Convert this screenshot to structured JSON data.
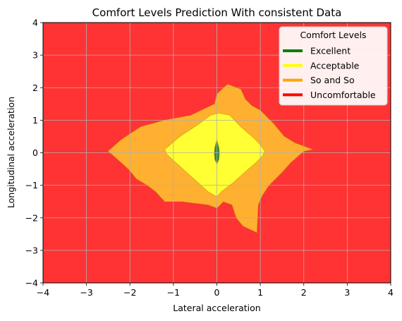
{
  "chart_data": {
    "type": "contour",
    "title": "Comfort Levels Prediction With consistent Data",
    "xlabel": "Lateral acceleration",
    "ylabel": "Longitudinal acceleration",
    "xlim": [
      -4,
      4
    ],
    "ylim": [
      -4,
      4
    ],
    "xticks": [
      -4,
      -3,
      -2,
      -1,
      0,
      1,
      2,
      3,
      4
    ],
    "yticks": [
      -4,
      -3,
      -2,
      -1,
      0,
      1,
      2,
      3,
      4
    ],
    "grid": true,
    "legend": {
      "title": "Comfort Levels",
      "placement": "top-right",
      "entries": [
        {
          "label": "Excellent",
          "color": "#008000"
        },
        {
          "label": "Acceptable",
          "color": "#ffff00"
        },
        {
          "label": "So and So",
          "color": "#ffa500"
        },
        {
          "label": "Uncomfortable",
          "color": "#ff0000"
        }
      ]
    },
    "regions": [
      {
        "level": "Uncomfortable",
        "fill": "#ff3333",
        "polygon": [
          [
            -4,
            -4
          ],
          [
            4,
            -4
          ],
          [
            4,
            4
          ],
          [
            -4,
            4
          ]
        ]
      },
      {
        "level": "So and So",
        "fill": "#ffb030",
        "polygon": [
          [
            -2.5,
            0.05
          ],
          [
            -2.2,
            0.4
          ],
          [
            -1.75,
            0.8
          ],
          [
            -1.2,
            1.0
          ],
          [
            -0.6,
            1.15
          ],
          [
            -0.05,
            1.5
          ],
          [
            0.0,
            1.8
          ],
          [
            0.2,
            2.05
          ],
          [
            0.25,
            2.1
          ],
          [
            0.55,
            1.95
          ],
          [
            0.65,
            1.65
          ],
          [
            0.8,
            1.45
          ],
          [
            1.0,
            1.3
          ],
          [
            1.3,
            0.9
          ],
          [
            1.55,
            0.5
          ],
          [
            1.8,
            0.3
          ],
          [
            2.0,
            0.2
          ],
          [
            2.2,
            0.1
          ],
          [
            2.0,
            0.05
          ],
          [
            1.7,
            -0.3
          ],
          [
            1.5,
            -0.6
          ],
          [
            1.2,
            -1.0
          ],
          [
            1.05,
            -1.3
          ],
          [
            0.95,
            -1.6
          ],
          [
            0.92,
            -2.45
          ],
          [
            0.6,
            -2.25
          ],
          [
            0.45,
            -2.0
          ],
          [
            0.35,
            -1.6
          ],
          [
            0.15,
            -1.5
          ],
          [
            0.0,
            -1.7
          ],
          [
            -0.2,
            -1.6
          ],
          [
            -0.5,
            -1.55
          ],
          [
            -0.8,
            -1.5
          ],
          [
            -1.2,
            -1.5
          ],
          [
            -1.4,
            -1.2
          ],
          [
            -1.6,
            -1.0
          ],
          [
            -1.85,
            -0.8
          ],
          [
            -2.0,
            -0.55
          ],
          [
            -2.2,
            -0.3
          ]
        ]
      },
      {
        "level": "Acceptable",
        "fill": "#ffff33",
        "polygon": [
          [
            -1.2,
            0.1
          ],
          [
            -0.85,
            0.5
          ],
          [
            -0.45,
            0.85
          ],
          [
            -0.15,
            1.15
          ],
          [
            0.05,
            1.22
          ],
          [
            0.3,
            1.15
          ],
          [
            0.55,
            0.8
          ],
          [
            0.85,
            0.45
          ],
          [
            1.0,
            0.25
          ],
          [
            1.1,
            0.05
          ],
          [
            1.05,
            -0.1
          ],
          [
            0.9,
            -0.3
          ],
          [
            0.6,
            -0.65
          ],
          [
            0.35,
            -0.95
          ],
          [
            0.1,
            -1.2
          ],
          [
            0.0,
            -1.35
          ],
          [
            -0.2,
            -1.2
          ],
          [
            -0.45,
            -0.9
          ],
          [
            -0.7,
            -0.6
          ],
          [
            -0.95,
            -0.3
          ],
          [
            -1.15,
            -0.05
          ]
        ]
      },
      {
        "level": "Excellent",
        "fill": "#2e8b3a",
        "polygon": [
          [
            0.0,
            0.4
          ],
          [
            0.05,
            0.15
          ],
          [
            0.06,
            0.0
          ],
          [
            0.05,
            -0.2
          ],
          [
            0.0,
            -0.35
          ],
          [
            -0.05,
            -0.2
          ],
          [
            -0.06,
            0.0
          ],
          [
            -0.05,
            0.15
          ]
        ]
      }
    ]
  }
}
